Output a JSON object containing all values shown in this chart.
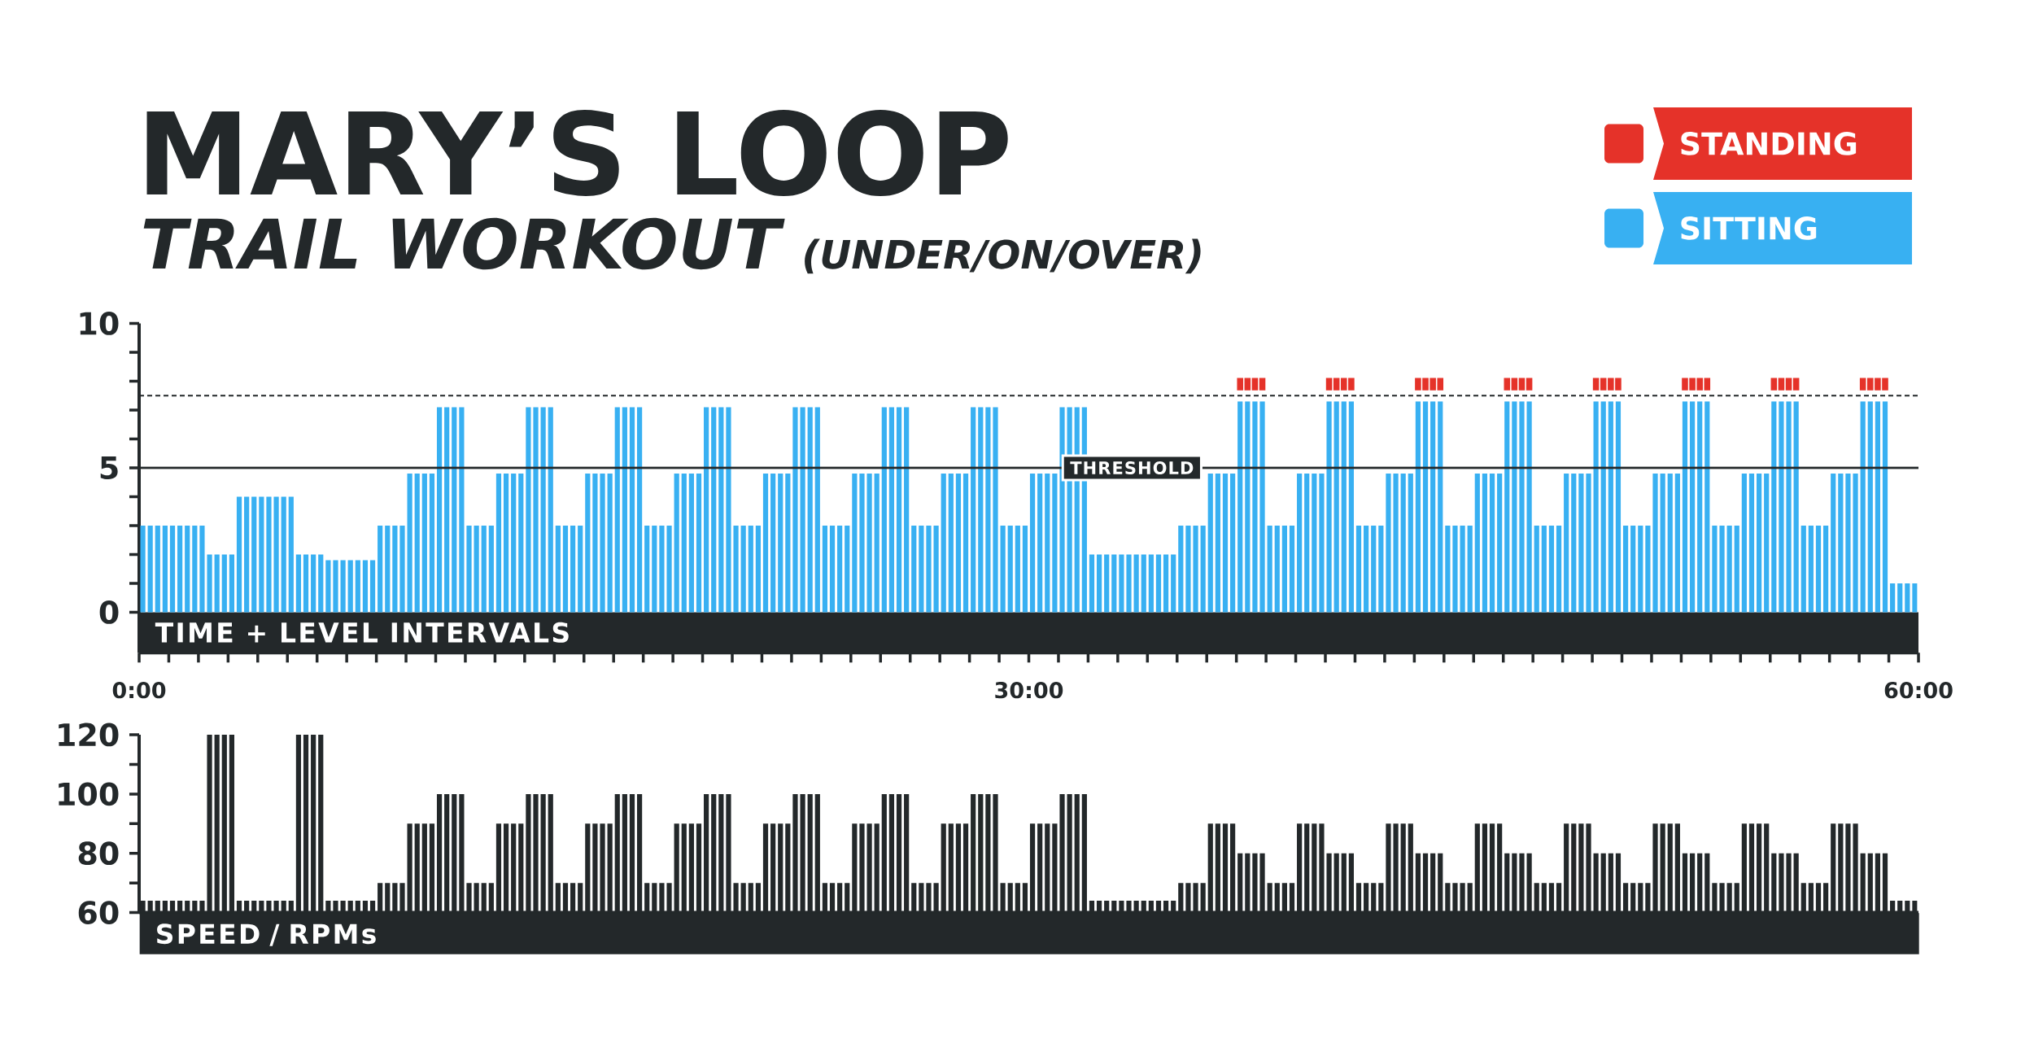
{
  "chart_data": [
    {
      "type": "bar",
      "title": "MARY’S LOOP",
      "subtitle": "TRAIL WORKOUT",
      "annotations": [
        "(UNDER/ON/OVER)"
      ],
      "xlabel": "TIME + LEVEL INTERVALS",
      "x": [
        0.125,
        0.375,
        0.625,
        0.875,
        1.125,
        1.375,
        1.625,
        1.875,
        2.125,
        2.375,
        2.625,
        2.875,
        3.125,
        3.375,
        3.625,
        3.875,
        4.125,
        4.375,
        4.625,
        4.875,
        5.125,
        5.375,
        5.625,
        5.875,
        6.125,
        6.375,
        6.625,
        6.875,
        7.125,
        7.375,
        7.625,
        7.875,
        8.125,
        8.375,
        8.625,
        8.875,
        9.125,
        9.375,
        9.625,
        9.875,
        10.125,
        10.375,
        10.625,
        10.875,
        11.125,
        11.375,
        11.625,
        11.875,
        12.125,
        12.375,
        12.625,
        12.875,
        13.125,
        13.375,
        13.625,
        13.875,
        14.125,
        14.375,
        14.625,
        14.875,
        15.125,
        15.375,
        15.625,
        15.875,
        16.125,
        16.375,
        16.625,
        16.875,
        17.125,
        17.375,
        17.625,
        17.875,
        18.125,
        18.375,
        18.625,
        18.875,
        19.125,
        19.375,
        19.625,
        19.875,
        20.125,
        20.375,
        20.625,
        20.875,
        21.125,
        21.375,
        21.625,
        21.875,
        22.125,
        22.375,
        22.625,
        22.875,
        23.125,
        23.375,
        23.625,
        23.875,
        24.125,
        24.375,
        24.625,
        24.875,
        25.125,
        25.375,
        25.625,
        25.875,
        26.125,
        26.375,
        26.625,
        26.875,
        27.125,
        27.375,
        27.625,
        27.875,
        28.125,
        28.375,
        28.625,
        28.875,
        29.125,
        29.375,
        29.625,
        29.875,
        30.125,
        30.375,
        30.625,
        30.875,
        31.125,
        31.375,
        31.625,
        31.875,
        32.125,
        32.375,
        32.625,
        32.875,
        33.125,
        33.375,
        33.625,
        33.875,
        34.125,
        34.375,
        34.625,
        34.875,
        35.125,
        35.375,
        35.625,
        35.875,
        36.125,
        36.375,
        36.625,
        36.875,
        37.125,
        37.375,
        37.625,
        37.875,
        38.125,
        38.375,
        38.625,
        38.875,
        39.125,
        39.375,
        39.625,
        39.875,
        40.125,
        40.375,
        40.625,
        40.875,
        41.125,
        41.375,
        41.625,
        41.875,
        42.125,
        42.375,
        42.625,
        42.875,
        43.125,
        43.375,
        43.625,
        43.875,
        44.125,
        44.375,
        44.625,
        44.875,
        45.125,
        45.375,
        45.625,
        45.875,
        46.125,
        46.375,
        46.625,
        46.875,
        47.125,
        47.375,
        47.625,
        47.875,
        48.125,
        48.375,
        48.625,
        48.875,
        49.125,
        49.375,
        49.625,
        49.875,
        50.125,
        50.375,
        50.625,
        50.875,
        51.125,
        51.375,
        51.625,
        51.875,
        52.125,
        52.375,
        52.625,
        52.875,
        53.125,
        53.375,
        53.625,
        53.875,
        54.125,
        54.375,
        54.625,
        54.875,
        55.125,
        55.375,
        55.625,
        55.875,
        56.125,
        56.375,
        56.625,
        56.875,
        57.125,
        57.375,
        57.625,
        57.875,
        58.125,
        58.375,
        58.625,
        58.875,
        59.125,
        59.375,
        59.625,
        59.875
      ],
      "series": [
        {
          "name": "STANDING",
          "type": "scatter",
          "marker": "square",
          "color": "#e53229",
          "x": [
            37.125,
            37.375,
            37.625,
            37.875,
            40.125,
            40.375,
            40.625,
            40.875,
            43.125,
            43.375,
            43.625,
            43.875,
            46.125,
            46.375,
            46.625,
            46.875,
            49.125,
            49.375,
            49.625,
            49.875,
            52.125,
            52.375,
            52.625,
            52.875,
            55.125,
            55.375,
            55.625,
            55.875,
            58.125,
            58.375,
            58.625,
            58.875
          ],
          "values": [
            7.9,
            7.9,
            7.9,
            7.9,
            7.9,
            7.9,
            7.9,
            7.9,
            7.9,
            7.9,
            7.9,
            7.9,
            7.9,
            7.9,
            7.9,
            7.9,
            7.9,
            7.9,
            7.9,
            7.9,
            7.9,
            7.9,
            7.9,
            7.9,
            7.9,
            7.9,
            7.9,
            7.9,
            7.9,
            7.9,
            7.9,
            7.9
          ]
        },
        {
          "name": "SITTING",
          "type": "bar",
          "color": "#38b0f2",
          "values": [
            3,
            3,
            3,
            3,
            3,
            3,
            3,
            3,
            3,
            2,
            2,
            2,
            2,
            4,
            4,
            4,
            4,
            4,
            4,
            4,
            4,
            2,
            2,
            2,
            2,
            1.8,
            1.8,
            1.8,
            1.8,
            1.8,
            1.8,
            1.8,
            3,
            3,
            3,
            3,
            4.8,
            4.8,
            4.8,
            4.8,
            7.1,
            7.1,
            7.1,
            7.1,
            3,
            3,
            3,
            3,
            4.8,
            4.8,
            4.8,
            4.8,
            7.1,
            7.1,
            7.1,
            7.1,
            3,
            3,
            3,
            3,
            4.8,
            4.8,
            4.8,
            4.8,
            7.1,
            7.1,
            7.1,
            7.1,
            3,
            3,
            3,
            3,
            4.8,
            4.8,
            4.8,
            4.8,
            7.1,
            7.1,
            7.1,
            7.1,
            3,
            3,
            3,
            3,
            4.8,
            4.8,
            4.8,
            4.8,
            7.1,
            7.1,
            7.1,
            7.1,
            3,
            3,
            3,
            3,
            4.8,
            4.8,
            4.8,
            4.8,
            7.1,
            7.1,
            7.1,
            7.1,
            3,
            3,
            3,
            3,
            4.8,
            4.8,
            4.8,
            4.8,
            7.1,
            7.1,
            7.1,
            7.1,
            3,
            3,
            3,
            3,
            4.8,
            4.8,
            4.8,
            4.8,
            7.1,
            7.1,
            7.1,
            7.1,
            2,
            2,
            2,
            2,
            2,
            2,
            2,
            2,
            2,
            2,
            2,
            2,
            3,
            3,
            3,
            3,
            4.8,
            4.8,
            4.8,
            4.8,
            7.3,
            7.3,
            7.3,
            7.3,
            3,
            3,
            3,
            3,
            4.8,
            4.8,
            4.8,
            4.8,
            7.3,
            7.3,
            7.3,
            7.3,
            3,
            3,
            3,
            3,
            4.8,
            4.8,
            4.8,
            4.8,
            7.3,
            7.3,
            7.3,
            7.3,
            3,
            3,
            3,
            3,
            4.8,
            4.8,
            4.8,
            4.8,
            7.3,
            7.3,
            7.3,
            7.3,
            3,
            3,
            3,
            3,
            4.8,
            4.8,
            4.8,
            4.8,
            7.3,
            7.3,
            7.3,
            7.3,
            3,
            3,
            3,
            3,
            4.8,
            4.8,
            4.8,
            4.8,
            7.3,
            7.3,
            7.3,
            7.3,
            3,
            3,
            3,
            3,
            4.8,
            4.8,
            4.8,
            4.8,
            7.3,
            7.3,
            7.3,
            7.3,
            3,
            3,
            3,
            3,
            4.8,
            4.8,
            4.8,
            4.8,
            7.3,
            7.3,
            7.3,
            7.3,
            1,
            1,
            1,
            1
          ]
        }
      ],
      "xlim": [
        0,
        60
      ],
      "xticks": [
        {
          "value": 0,
          "label": "0:00"
        },
        {
          "value": 1,
          "label": null
        },
        {
          "value": 2,
          "label": null
        },
        {
          "value": 3,
          "label": null
        },
        {
          "value": 4,
          "label": null
        },
        {
          "value": 5,
          "label": null
        },
        {
          "value": 6,
          "label": null
        },
        {
          "value": 7,
          "label": null
        },
        {
          "value": 8,
          "label": null
        },
        {
          "value": 9,
          "label": null
        },
        {
          "value": 10,
          "label": null
        },
        {
          "value": 11,
          "label": null
        },
        {
          "value": 12,
          "label": null
        },
        {
          "value": 13,
          "label": null
        },
        {
          "value": 14,
          "label": null
        },
        {
          "value": 15,
          "label": null
        },
        {
          "value": 16,
          "label": null
        },
        {
          "value": 17,
          "label": null
        },
        {
          "value": 18,
          "label": null
        },
        {
          "value": 19,
          "label": null
        },
        {
          "value": 20,
          "label": null
        },
        {
          "value": 21,
          "label": null
        },
        {
          "value": 22,
          "label": null
        },
        {
          "value": 23,
          "label": null
        },
        {
          "value": 24,
          "label": null
        },
        {
          "value": 25,
          "label": null
        },
        {
          "value": 26,
          "label": null
        },
        {
          "value": 27,
          "label": null
        },
        {
          "value": 28,
          "label": null
        },
        {
          "value": 29,
          "label": null
        },
        {
          "value": 30,
          "label": "30:00"
        },
        {
          "value": 31,
          "label": null
        },
        {
          "value": 32,
          "label": null
        },
        {
          "value": 33,
          "label": null
        },
        {
          "value": 34,
          "label": null
        },
        {
          "value": 35,
          "label": null
        },
        {
          "value": 36,
          "label": null
        },
        {
          "value": 37,
          "label": null
        },
        {
          "value": 38,
          "label": null
        },
        {
          "value": 39,
          "label": null
        },
        {
          "value": 40,
          "label": null
        },
        {
          "value": 41,
          "label": null
        },
        {
          "value": 42,
          "label": null
        },
        {
          "value": 43,
          "label": null
        },
        {
          "value": 44,
          "label": null
        },
        {
          "value": 45,
          "label": null
        },
        {
          "value": 46,
          "label": null
        },
        {
          "value": 47,
          "label": null
        },
        {
          "value": 48,
          "label": null
        },
        {
          "value": 49,
          "label": null
        },
        {
          "value": 50,
          "label": null
        },
        {
          "value": 51,
          "label": null
        },
        {
          "value": 52,
          "label": null
        },
        {
          "value": 53,
          "label": null
        },
        {
          "value": 54,
          "label": null
        },
        {
          "value": 55,
          "label": null
        },
        {
          "value": 56,
          "label": null
        },
        {
          "value": 57,
          "label": null
        },
        {
          "value": 58,
          "label": null
        },
        {
          "value": 59,
          "label": null
        },
        {
          "value": 60,
          "label": "60:00"
        }
      ],
      "ylim": [
        -1.4,
        10
      ],
      "yticks": [
        0,
        {
          "value": 1,
          "label": null
        },
        {
          "value": 2,
          "label": null
        },
        {
          "value": 3,
          "label": null
        },
        {
          "value": 4,
          "label": null
        },
        5,
        {
          "value": 6,
          "label": null
        },
        {
          "value": 7,
          "label": null
        },
        {
          "value": 8,
          "label": null
        },
        {
          "value": 9,
          "label": null
        },
        10
      ],
      "bands": [
        {
          "axis": "y",
          "from": -1.4,
          "to": 0,
          "color": "#23282a"
        }
      ],
      "ref_lines": [
        {
          "axis": "y",
          "value": 5,
          "label": "THRESHOLD",
          "color": "#23282a",
          "line_style": "solid"
        },
        {
          "axis": "y",
          "value": 7.5,
          "color": "#23282a",
          "line_style": "dashed"
        }
      ],
      "legend": "top right"
    },
    {
      "type": "bar",
      "xlabel": "SPEED / RPMs",
      "x": [
        0.125,
        0.375,
        0.625,
        0.875,
        1.125,
        1.375,
        1.625,
        1.875,
        2.125,
        2.375,
        2.625,
        2.875,
        3.125,
        3.375,
        3.625,
        3.875,
        4.125,
        4.375,
        4.625,
        4.875,
        5.125,
        5.375,
        5.625,
        5.875,
        6.125,
        6.375,
        6.625,
        6.875,
        7.125,
        7.375,
        7.625,
        7.875,
        8.125,
        8.375,
        8.625,
        8.875,
        9.125,
        9.375,
        9.625,
        9.875,
        10.125,
        10.375,
        10.625,
        10.875,
        11.125,
        11.375,
        11.625,
        11.875,
        12.125,
        12.375,
        12.625,
        12.875,
        13.125,
        13.375,
        13.625,
        13.875,
        14.125,
        14.375,
        14.625,
        14.875,
        15.125,
        15.375,
        15.625,
        15.875,
        16.125,
        16.375,
        16.625,
        16.875,
        17.125,
        17.375,
        17.625,
        17.875,
        18.125,
        18.375,
        18.625,
        18.875,
        19.125,
        19.375,
        19.625,
        19.875,
        20.125,
        20.375,
        20.625,
        20.875,
        21.125,
        21.375,
        21.625,
        21.875,
        22.125,
        22.375,
        22.625,
        22.875,
        23.125,
        23.375,
        23.625,
        23.875,
        24.125,
        24.375,
        24.625,
        24.875,
        25.125,
        25.375,
        25.625,
        25.875,
        26.125,
        26.375,
        26.625,
        26.875,
        27.125,
        27.375,
        27.625,
        27.875,
        28.125,
        28.375,
        28.625,
        28.875,
        29.125,
        29.375,
        29.625,
        29.875,
        30.125,
        30.375,
        30.625,
        30.875,
        31.125,
        31.375,
        31.625,
        31.875,
        32.125,
        32.375,
        32.625,
        32.875,
        33.125,
        33.375,
        33.625,
        33.875,
        34.125,
        34.375,
        34.625,
        34.875,
        35.125,
        35.375,
        35.625,
        35.875,
        36.125,
        36.375,
        36.625,
        36.875,
        37.125,
        37.375,
        37.625,
        37.875,
        38.125,
        38.375,
        38.625,
        38.875,
        39.125,
        39.375,
        39.625,
        39.875,
        40.125,
        40.375,
        40.625,
        40.875,
        41.125,
        41.375,
        41.625,
        41.875,
        42.125,
        42.375,
        42.625,
        42.875,
        43.125,
        43.375,
        43.625,
        43.875,
        44.125,
        44.375,
        44.625,
        44.875,
        45.125,
        45.375,
        45.625,
        45.875,
        46.125,
        46.375,
        46.625,
        46.875,
        47.125,
        47.375,
        47.625,
        47.875,
        48.125,
        48.375,
        48.625,
        48.875,
        49.125,
        49.375,
        49.625,
        49.875,
        50.125,
        50.375,
        50.625,
        50.875,
        51.125,
        51.375,
        51.625,
        51.875,
        52.125,
        52.375,
        52.625,
        52.875,
        53.125,
        53.375,
        53.625,
        53.875,
        54.125,
        54.375,
        54.625,
        54.875,
        55.125,
        55.375,
        55.625,
        55.875,
        56.125,
        56.375,
        56.625,
        56.875,
        57.125,
        57.375,
        57.625,
        57.875,
        58.125,
        58.375,
        58.625,
        58.875,
        59.125,
        59.375,
        59.625,
        59.875
      ],
      "values": [
        64,
        64,
        64,
        64,
        64,
        64,
        64,
        64,
        64,
        120,
        120,
        120,
        120,
        64,
        64,
        64,
        64,
        64,
        64,
        64,
        64,
        120,
        120,
        120,
        120,
        64,
        64,
        64,
        64,
        64,
        64,
        64,
        70,
        70,
        70,
        70,
        90,
        90,
        90,
        90,
        100,
        100,
        100,
        100,
        70,
        70,
        70,
        70,
        90,
        90,
        90,
        90,
        100,
        100,
        100,
        100,
        70,
        70,
        70,
        70,
        90,
        90,
        90,
        90,
        100,
        100,
        100,
        100,
        70,
        70,
        70,
        70,
        90,
        90,
        90,
        90,
        100,
        100,
        100,
        100,
        70,
        70,
        70,
        70,
        90,
        90,
        90,
        90,
        100,
        100,
        100,
        100,
        70,
        70,
        70,
        70,
        90,
        90,
        90,
        90,
        100,
        100,
        100,
        100,
        70,
        70,
        70,
        70,
        90,
        90,
        90,
        90,
        100,
        100,
        100,
        100,
        70,
        70,
        70,
        70,
        90,
        90,
        90,
        90,
        100,
        100,
        100,
        100,
        64,
        64,
        64,
        64,
        64,
        64,
        64,
        64,
        64,
        64,
        64,
        64,
        70,
        70,
        70,
        70,
        90,
        90,
        90,
        90,
        80,
        80,
        80,
        80,
        70,
        70,
        70,
        70,
        90,
        90,
        90,
        90,
        80,
        80,
        80,
        80,
        70,
        70,
        70,
        70,
        90,
        90,
        90,
        90,
        80,
        80,
        80,
        80,
        70,
        70,
        70,
        70,
        90,
        90,
        90,
        90,
        80,
        80,
        80,
        80,
        70,
        70,
        70,
        70,
        90,
        90,
        90,
        90,
        80,
        80,
        80,
        80,
        70,
        70,
        70,
        70,
        90,
        90,
        90,
        90,
        80,
        80,
        80,
        80,
        70,
        70,
        70,
        70,
        90,
        90,
        90,
        90,
        80,
        80,
        80,
        80,
        70,
        70,
        70,
        70,
        90,
        90,
        90,
        90,
        80,
        80,
        80,
        80,
        64,
        64,
        64,
        64
      ],
      "color": "#23282a",
      "xlim": [
        0,
        60
      ],
      "ylim": [
        60,
        120
      ],
      "yticks": [
        60,
        {
          "value": 70,
          "label": null
        },
        80,
        {
          "value": 90,
          "label": null
        },
        100,
        {
          "value": 110,
          "label": null
        },
        120
      ],
      "tick_labels": "y"
    }
  ]
}
